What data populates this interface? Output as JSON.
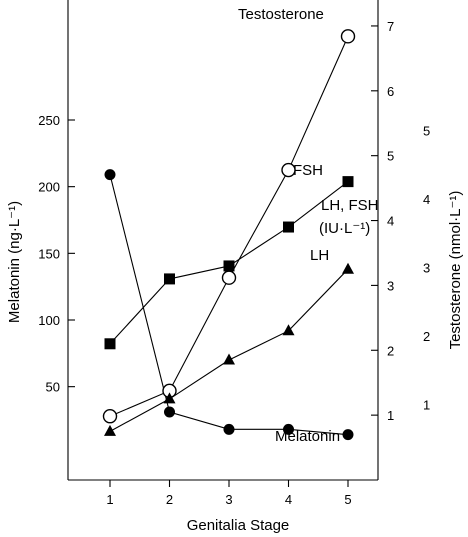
{
  "chart_data": {
    "type": "line",
    "xlabel": "Genitalia Stage",
    "ylabel_left": "Melatonin (ng·L⁻¹)",
    "ylabel_right_outer": "Testosterone (nmol·L⁻¹)",
    "x_ticks": [
      "1",
      "2",
      "3",
      "4",
      "5"
    ],
    "left_axis": {
      "ylim": [
        -20,
        340
      ],
      "ticks": [
        50,
        100,
        150,
        200,
        250
      ]
    },
    "right_inner_axis": {
      "label_lines": [
        "LH, FSH",
        "(IU·L⁻¹)"
      ],
      "ylim": [
        0,
        7.4
      ],
      "ticks": [
        1,
        2,
        3,
        4,
        5,
        6,
        7
      ]
    },
    "right_outer_axis": {
      "ylim": [
        -0.1,
        6.9
      ],
      "ticks": [
        1,
        2,
        3,
        4,
        5
      ]
    },
    "series": [
      {
        "name": "Melatonin",
        "axis": "left",
        "marker": "filled-circle",
        "x": [
          1,
          2,
          3,
          4,
          5
        ],
        "y": [
          209,
          31,
          18,
          18,
          14
        ]
      },
      {
        "name": "Testosterone",
        "axis": "right_outer",
        "marker": "open-circle",
        "x": [
          1,
          2,
          3,
          4,
          5
        ],
        "y": [
          0.83,
          1.2,
          2.85,
          4.42,
          6.37
        ]
      },
      {
        "name": "FSH",
        "axis": "right_inner",
        "marker": "filled-square",
        "x": [
          1,
          2,
          3,
          4,
          5
        ],
        "y": [
          2.1,
          3.1,
          3.3,
          3.9,
          4.6
        ]
      },
      {
        "name": "LH",
        "axis": "right_inner",
        "marker": "filled-triangle",
        "x": [
          1,
          2,
          3,
          4,
          5
        ],
        "y": [
          0.75,
          1.25,
          1.85,
          2.3,
          3.25
        ]
      }
    ]
  }
}
